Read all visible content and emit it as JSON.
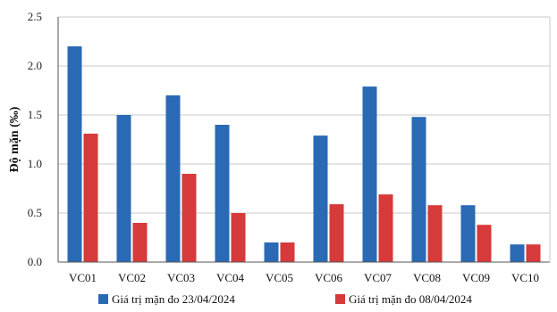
{
  "chart_data": {
    "type": "bar",
    "ylabel": "Độ mặn (‰)",
    "ylim": [
      0,
      2.5
    ],
    "yticks": [
      "0.0",
      "0.5",
      "1.0",
      "1.5",
      "2.0",
      "2.5"
    ],
    "grid": true,
    "legend_position": "bottom",
    "categories": [
      "VC01",
      "VC02",
      "VC03",
      "VC04",
      "VC05",
      "VC06",
      "VC07",
      "VC08",
      "VC09",
      "VC10"
    ],
    "series": [
      {
        "name": "Giá trị mặn đo 23/04/2024",
        "color": "#2a6ab5",
        "values": [
          2.2,
          1.5,
          1.7,
          1.4,
          0.2,
          1.29,
          1.79,
          1.48,
          0.58,
          0.18
        ]
      },
      {
        "name": "Giá trị mặn đo 08/04/2024",
        "color": "#d63a3a",
        "values": [
          1.31,
          0.4,
          0.9,
          0.5,
          0.2,
          0.59,
          0.69,
          0.58,
          0.38,
          0.18
        ]
      }
    ]
  }
}
